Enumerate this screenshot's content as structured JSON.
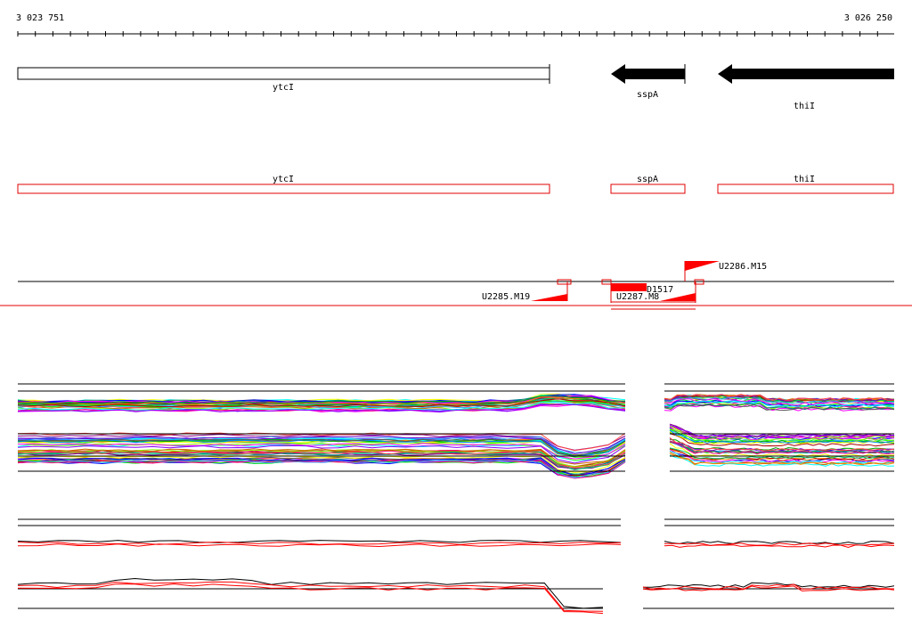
{
  "ruler": {
    "start_label": "3 023 751",
    "end_label": "3 026 250"
  },
  "genes": [
    {
      "name": "ytcI",
      "strand": "+",
      "style": "outline"
    },
    {
      "name": "sspA",
      "strand": "-",
      "style": "filled"
    },
    {
      "name": "thiI",
      "strand": "-",
      "style": "filled"
    }
  ],
  "gene_boxes": [
    {
      "name": "ytcI"
    },
    {
      "name": "sspA"
    },
    {
      "name": "thiI"
    }
  ],
  "features": [
    {
      "label": "U2285.M19"
    },
    {
      "label": "U2286.M15"
    },
    {
      "label": "U2287.M8"
    },
    {
      "label": "D1517"
    }
  ],
  "colors": {
    "gene_fill": "#000000",
    "gene_box_outline": "#e00000",
    "feature": "#ff0000",
    "axis": "#000000"
  },
  "expression_panels": [
    {
      "name": "condition-profiles-top"
    },
    {
      "name": "condition-profiles-bottom"
    }
  ]
}
